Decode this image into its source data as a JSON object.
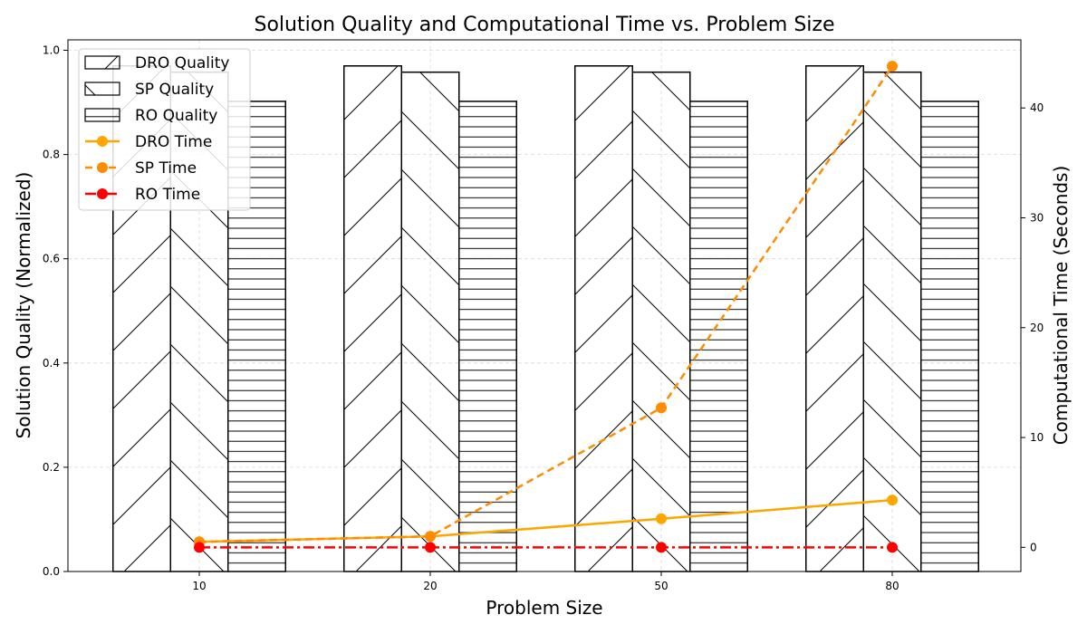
{
  "chart_data": {
    "type": "bar",
    "title": "Solution Quality and Computational Time vs. Problem Size",
    "xlabel": "Problem Size",
    "ylabel": "Solution Quality (Normalized)",
    "y2label": "Computational Time (Seconds)",
    "categories": [
      "10",
      "20",
      "50",
      "80"
    ],
    "ylim": [
      0,
      1.02
    ],
    "y2lim": [
      -2.2,
      46.2
    ],
    "yticks": [
      "0.0",
      "0.2",
      "0.4",
      "0.6",
      "0.8",
      "1.0"
    ],
    "y2ticks": [
      "0",
      "10",
      "20",
      "30",
      "40"
    ],
    "grid": true,
    "legend_position": "top-left",
    "bar_series": [
      {
        "name": "DRO Quality",
        "hatch": "diagonal-forward",
        "values": [
          0.97,
          0.97,
          0.97,
          0.97
        ]
      },
      {
        "name": "SP Quality",
        "hatch": "diagonal-backward",
        "values": [
          0.958,
          0.958,
          0.958,
          0.958
        ]
      },
      {
        "name": "RO Quality",
        "hatch": "horizontal",
        "values": [
          0.902,
          0.902,
          0.902,
          0.902
        ]
      }
    ],
    "line_series": [
      {
        "name": "DRO Time",
        "color": "#FFA500",
        "style": "solid",
        "values": [
          0.5,
          1.0,
          2.6,
          4.3
        ]
      },
      {
        "name": "SP Time",
        "color": "#FF8C00",
        "style": "dashed",
        "values": [
          0.5,
          1.0,
          12.7,
          43.8
        ]
      },
      {
        "name": "RO Time",
        "color": "#FF0000",
        "style": "dashdot",
        "values": [
          0.0,
          0.0,
          0.0,
          0.0
        ]
      }
    ]
  }
}
